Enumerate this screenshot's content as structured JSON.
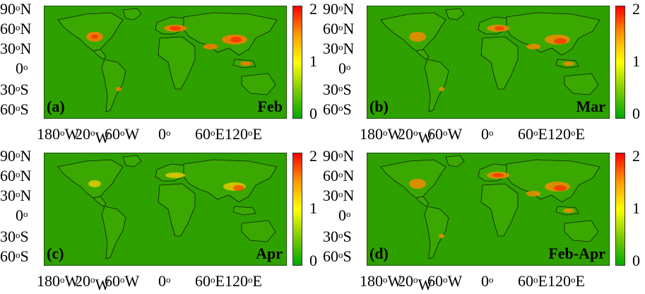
{
  "figure": {
    "colorbar": {
      "ticks": [
        "2",
        "1",
        "0"
      ],
      "colors": [
        "#00aa00",
        "#ffff00",
        "#ff0000"
      ]
    },
    "y_axis": {
      "ticks": [
        {
          "deg": "90",
          "sup": "o",
          "hem": "N"
        },
        {
          "deg": "60",
          "sup": "o",
          "hem": "N"
        },
        {
          "deg": "30",
          "sup": "o",
          "hem": "N"
        },
        {
          "deg": "0",
          "sup": "o",
          "hem": ""
        },
        {
          "deg": "30",
          "sup": "o",
          "hem": "S"
        },
        {
          "deg": "60",
          "sup": "o",
          "hem": "S"
        }
      ]
    },
    "x_axis": {
      "ticks": [
        {
          "deg": "180",
          "sup": "o",
          "hem": "W"
        },
        {
          "deg": "120",
          "sup": "o",
          "hem": "W"
        },
        {
          "deg": "60",
          "sup": "o",
          "hem": "W"
        },
        {
          "deg": "0",
          "sup": "o",
          "hem": ""
        },
        {
          "deg": "60",
          "sup": "o",
          "hem": "E"
        },
        {
          "deg": "120",
          "sup": "o",
          "hem": "E"
        }
      ]
    },
    "panels": [
      {
        "label": "(a)",
        "month": "Feb"
      },
      {
        "label": "(b)",
        "month": "Mar"
      },
      {
        "label": "(c)",
        "month": "Apr"
      },
      {
        "label": "(d)",
        "month": "Feb-Apr"
      }
    ]
  }
}
